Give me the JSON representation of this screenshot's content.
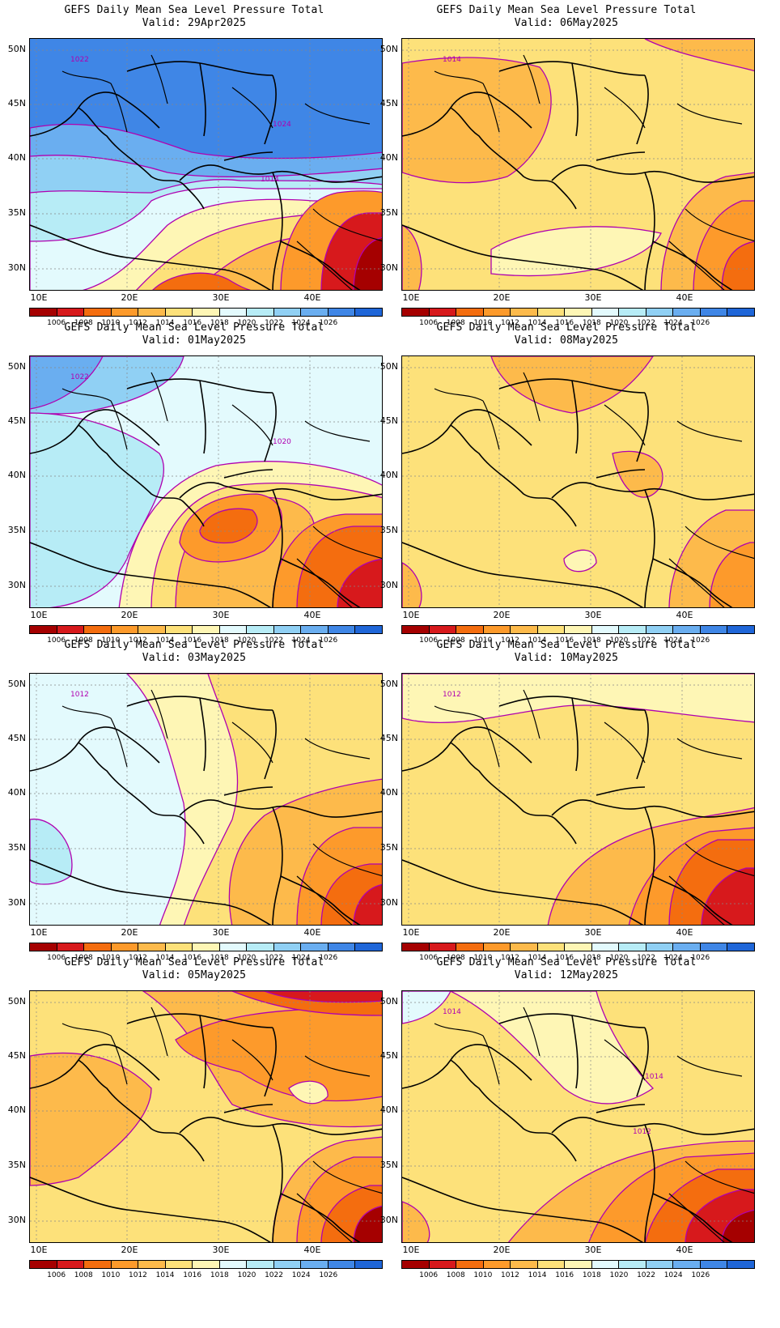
{
  "title": "GEFS Daily Mean Sea Level Pressure Total",
  "lat_labels": [
    "50N",
    "45N",
    "40N",
    "35N",
    "30N"
  ],
  "lon_labels": [
    "10E",
    "20E",
    "30E",
    "40E"
  ],
  "colorbar": {
    "labels": [
      "1006",
      "1008",
      "1010",
      "1012",
      "1014",
      "1016",
      "1018",
      "1020",
      "1022",
      "1024",
      "1026"
    ],
    "colors": [
      "#a50000",
      "#d7191c",
      "#f46d0f",
      "#fd9a2b",
      "#fdba4b",
      "#fde17a",
      "#fef6b5",
      "#e3fafd",
      "#b7ecf6",
      "#90d0f4",
      "#6aaef0",
      "#3f86e6",
      "#1f66d8"
    ]
  },
  "panels": [
    {
      "valid": "Valid: 29Apr2025",
      "contour_labels": [
        "1022",
        "1024",
        "1014"
      ],
      "scheme": "high_north"
    },
    {
      "valid": "Valid: 06May2025",
      "contour_labels": [
        "1014"
      ],
      "scheme": "warm_mid"
    },
    {
      "valid": "Valid: 01May2025",
      "contour_labels": [
        "1022",
        "1020"
      ],
      "scheme": "low_center"
    },
    {
      "valid": "Valid: 08May2025",
      "contour_labels": [],
      "scheme": "warm_flat"
    },
    {
      "valid": "Valid: 03May2025",
      "contour_labels": [
        "1012"
      ],
      "scheme": "west_high"
    },
    {
      "valid": "Valid: 10May2025",
      "contour_labels": [
        "1012"
      ],
      "scheme": "warm_east_low"
    },
    {
      "valid": "Valid: 05May2025",
      "contour_labels": [],
      "scheme": "warm_north_low"
    },
    {
      "valid": "Valid: 12May2025",
      "contour_labels": [
        "1014",
        "1014",
        "1012"
      ],
      "scheme": "warm_east_low2"
    }
  ]
}
